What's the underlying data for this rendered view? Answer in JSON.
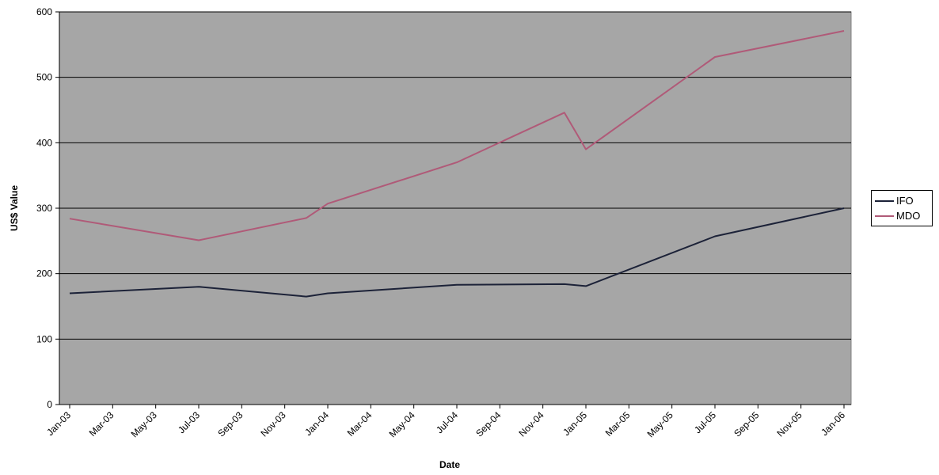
{
  "chart_data": {
    "type": "line",
    "title": "",
    "xlabel": "Date",
    "ylabel": "US$ Value",
    "ylim": [
      0,
      600
    ],
    "yticks": [
      "0",
      "100",
      "200",
      "300",
      "400",
      "500",
      "600"
    ],
    "xticks": [
      "Jan-03",
      "Mar-03",
      "May-03",
      "Jul-03",
      "Sep-03",
      "Nov-03",
      "Jan-04",
      "Mar-04",
      "May-04",
      "Jul-04",
      "Sep-04",
      "Nov-04",
      "Jan-05",
      "Mar-05",
      "May-05",
      "Jul-05",
      "Sep-05",
      "Nov-05",
      "Jan-06"
    ],
    "x": [
      "Jan-03",
      "Jul-03",
      "Dec-03",
      "Jan-04",
      "Jul-04",
      "Dec-04",
      "Jan-05",
      "Jul-05",
      "Jan-06"
    ],
    "grid": true,
    "legend_position": "right",
    "plot_background": "#a6a6a6",
    "series": [
      {
        "name": "IFO",
        "color": "#1c2238",
        "values": [
          170,
          180,
          165,
          170,
          183,
          184,
          181,
          257,
          300
        ]
      },
      {
        "name": "MDO",
        "color": "#b05a78",
        "values": [
          284,
          251,
          285,
          307,
          370,
          446,
          390,
          531,
          571
        ]
      }
    ]
  }
}
